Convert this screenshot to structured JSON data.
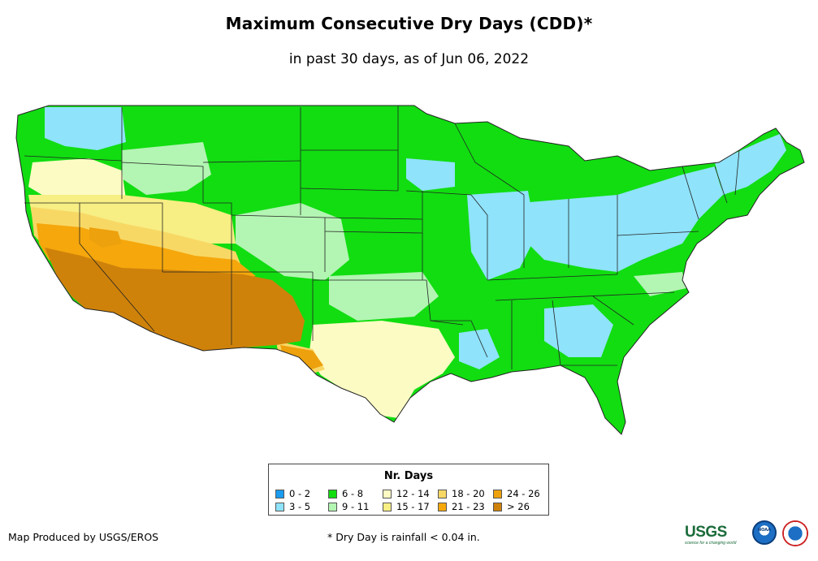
{
  "map": {
    "title": "Maximum Consecutive Dry Days (CDD)*",
    "subtitle": "in past 30 days, as of Jun 06, 2022",
    "region": "Contiguous United States",
    "states": [
      "WA",
      "OR",
      "CA",
      "NV",
      "ID",
      "MT",
      "WY",
      "UT",
      "AZ",
      "CO",
      "NM",
      "ND",
      "SD",
      "NE",
      "KS",
      "OK",
      "TX",
      "MN",
      "IA",
      "MO",
      "AR",
      "LA",
      "WI",
      "IL",
      "MI",
      "IN",
      "OH",
      "KY",
      "TN",
      "MS",
      "AL",
      "GA",
      "FL",
      "SC",
      "NC",
      "VA",
      "WV",
      "PA",
      "NY",
      "VT",
      "NH",
      "ME",
      "MA",
      "CT",
      "RI",
      "NJ",
      "DE",
      "MD"
    ]
  },
  "legend": {
    "title": "Nr. Days",
    "classes": [
      {
        "label": "0 - 2",
        "color": "#1a9cf0"
      },
      {
        "label": "3 - 5",
        "color": "#8fe3fa"
      },
      {
        "label": "6 - 8",
        "color": "#11dd11"
      },
      {
        "label": "9 - 11",
        "color": "#b3f5b3"
      },
      {
        "label": "12 - 14",
        "color": "#fdfbc4"
      },
      {
        "label": "15 - 17",
        "color": "#f7ee84"
      },
      {
        "label": "18 - 20",
        "color": "#f8d865"
      },
      {
        "label": "21 - 23",
        "color": "#f5a70c"
      },
      {
        "label": "24 - 26",
        "color": "#eda10c"
      },
      {
        "label": "> 26",
        "color": "#cf820a"
      }
    ]
  },
  "footer": {
    "credit": "Map Produced by USGS/EROS",
    "footnote": "* Dry Day is rainfall < 0.04 in."
  },
  "logos": {
    "usgs": "USGS",
    "usgs_tagline": "science for a changing world",
    "noaa": "NOAA",
    "nws": "National Weather Service"
  }
}
